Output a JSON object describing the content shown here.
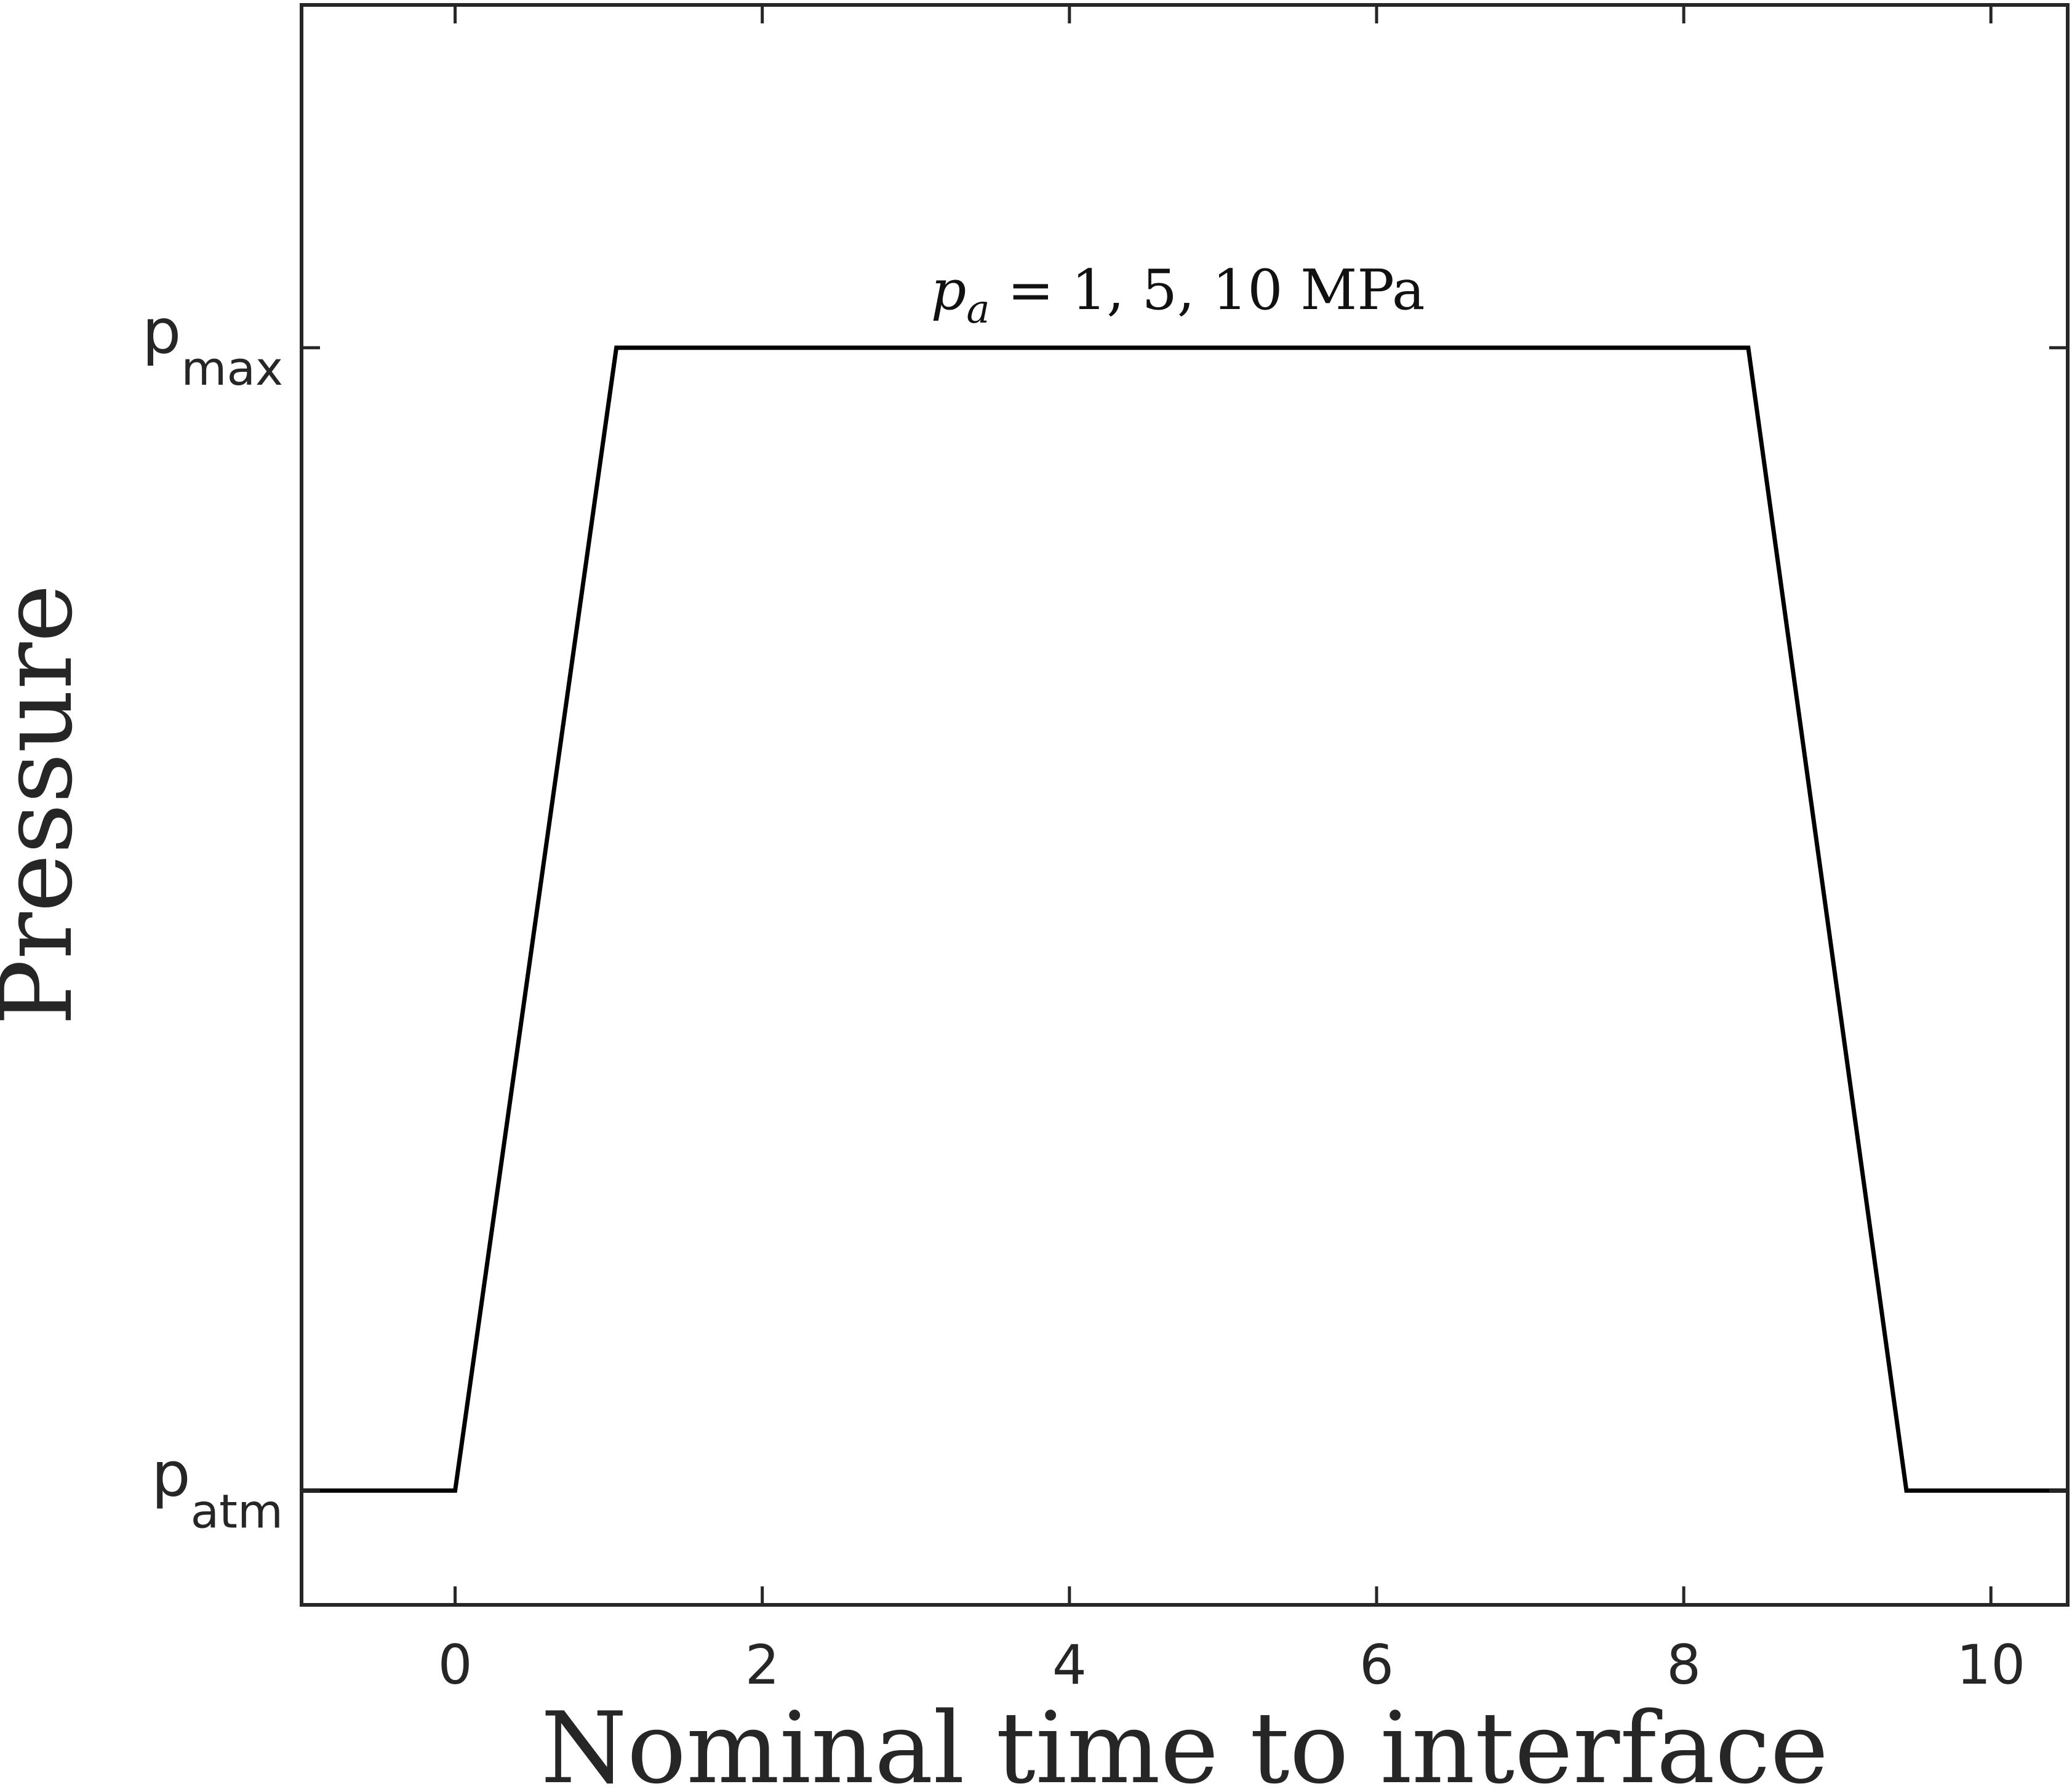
{
  "chart_data": {
    "type": "line",
    "title": "",
    "xlabel": "Nominal time to interface",
    "ylabel": "Pressure",
    "xlim": [
      -1,
      10.5
    ],
    "ylim": [
      -0.1,
      1.3
    ],
    "grid": false,
    "x_ticks": [
      "0",
      "2",
      "4",
      "6",
      "8",
      "10"
    ],
    "y_ticks": [
      {
        "main": "p",
        "sub": "atm",
        "value": 0
      },
      {
        "main": "p",
        "sub": "max",
        "value": 1
      }
    ],
    "series": [
      {
        "x": [
          -1,
          0,
          1.05,
          8.42,
          9.45,
          10.5
        ],
        "y": [
          0,
          0,
          1,
          1,
          0,
          0
        ],
        "color": "#000000"
      }
    ],
    "annotation": {
      "symbol": "p",
      "subscript": "a",
      "text": " = 1, 5, 10 MPa",
      "x": 4.3,
      "y": 1.05
    }
  }
}
